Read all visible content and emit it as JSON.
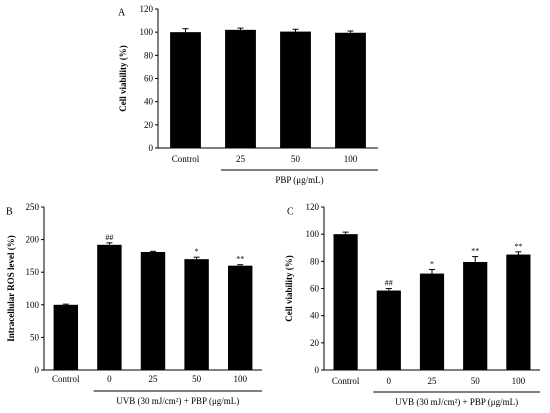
{
  "chart_data": [
    {
      "panel": "A",
      "type": "bar",
      "categories": [
        "Control",
        "25",
        "50",
        "100"
      ],
      "values": [
        100,
        102,
        100.5,
        99.5
      ],
      "errors": [
        3,
        1.5,
        2,
        1.5
      ],
      "annotations": [
        "",
        "",
        "",
        ""
      ],
      "ylabel": "Cell viability (%)",
      "ylim": [
        0,
        120
      ],
      "yticks": [
        0,
        20,
        40,
        60,
        80,
        100,
        120
      ],
      "group_label": "PBP (μg/mL)",
      "bar_color": "#000000"
    },
    {
      "panel": "B",
      "type": "bar",
      "categories": [
        "Control",
        "0",
        "25",
        "50",
        "100"
      ],
      "values": [
        100,
        192,
        181,
        170,
        160
      ],
      "errors": [
        1,
        3,
        1,
        3,
        1.5
      ],
      "annotations": [
        "",
        "##",
        "",
        "*",
        "**"
      ],
      "ylabel": "Intracellular ROS level (%)",
      "ylim": [
        0,
        250
      ],
      "yticks": [
        0,
        50,
        100,
        150,
        200,
        250
      ],
      "group_label": "UVB (30 mJ/cm²) + PBP (μg/mL)",
      "bar_color": "#000000"
    },
    {
      "panel": "C",
      "type": "bar",
      "categories": [
        "Control",
        "0",
        "25",
        "50",
        "100"
      ],
      "values": [
        100,
        58.5,
        71,
        79.5,
        85
      ],
      "errors": [
        1.5,
        1.5,
        3,
        4,
        2
      ],
      "annotations": [
        "",
        "##",
        "*",
        "**",
        "**"
      ],
      "ylabel": "Cell viability (%)",
      "ylim": [
        0,
        120
      ],
      "yticks": [
        0,
        20,
        40,
        60,
        80,
        100,
        120
      ],
      "group_label": "UVB (30 mJ/cm²) + PBP (μg/mL)",
      "bar_color": "#000000"
    }
  ]
}
